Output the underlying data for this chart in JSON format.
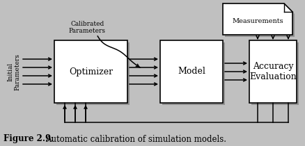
{
  "bg_color": "#c0c0c0",
  "box_fill": "#ffffff",
  "box_edge": "#000000",
  "shadow_color": "#909090",
  "title": "Figure 2.9:",
  "caption": "Automatic calibration of simulation models.",
  "optimizer_label": "Optimizer",
  "model_label": "Model",
  "accuracy_label": "Accuracy\nEvaluation",
  "measurements_label": "Measurements",
  "initial_params_label": "Initial\nParameters",
  "calibrated_params_label": "Calibrated\nParameters",
  "arrow_color": "#000000",
  "font_size_boxes": 9,
  "font_size_labels": 6.5,
  "font_size_caption": 8.5
}
